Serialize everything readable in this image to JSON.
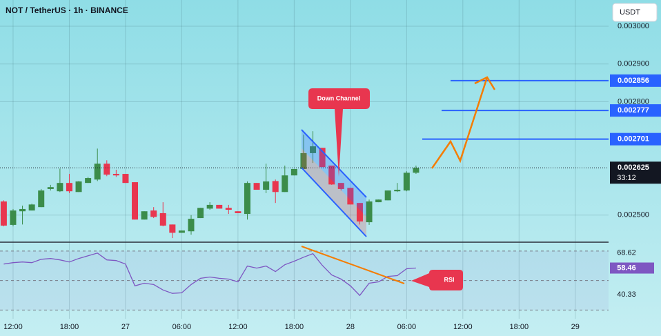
{
  "chart_data": [
    {
      "type": "candlestick",
      "title": "NOT / TetherUS · 1h · BINANCE",
      "currency": "USDT",
      "countdown": "33:12",
      "categories": [
        null,
        "12:00",
        null,
        null,
        null,
        null,
        null,
        "18:00",
        null,
        null,
        null,
        null,
        null,
        "27",
        null,
        null,
        null,
        null,
        null,
        "06:00",
        null,
        null,
        null,
        null,
        null,
        "12:00",
        null,
        null,
        null,
        null,
        null,
        "18:00",
        null,
        null,
        null,
        null,
        null,
        "28",
        null,
        null,
        null,
        null,
        null,
        "06:00",
        null,
        null,
        null,
        null,
        null,
        "12:00",
        null,
        null,
        null,
        null,
        null,
        "18:00",
        null,
        null,
        null,
        null,
        null,
        "29",
        null,
        null,
        null
      ],
      "open": [
        0.002536,
        0.002474,
        0.00251,
        0.002512,
        0.002521,
        0.002569,
        0.002563,
        0.002585,
        0.002561,
        0.002585,
        0.002594,
        0.002636,
        0.002609,
        0.002609,
        0.002587,
        0.002488,
        0.002512,
        0.002505,
        0.002475,
        0.002453,
        0.002457,
        0.002492,
        0.002517,
        0.002527,
        0.002519,
        0.00251,
        0.002503,
        0.002585,
        0.002567,
        0.00259,
        0.002561,
        0.002605,
        0.002622,
        0.002664,
        0.002678,
        0.002631,
        0.002585,
        0.002572,
        0.002532,
        0.002481,
        0.002534,
        0.002539,
        0.002563,
        0.002565,
        0.002612,
        null,
        null,
        null,
        null,
        null,
        null,
        null,
        null,
        null,
        null,
        null,
        null,
        null,
        null,
        null,
        null,
        null,
        null,
        null,
        null
      ],
      "high": [
        0.002539,
        0.002516,
        0.002525,
        0.00253,
        0.002569,
        0.00258,
        0.002623,
        0.002609,
        0.00259,
        0.002601,
        0.002676,
        0.002645,
        0.00262,
        0.002609,
        0.002587,
        0.00251,
        0.002521,
        0.002534,
        0.002475,
        0.002459,
        0.0025,
        0.002519,
        0.002534,
        0.002527,
        0.002527,
        0.00251,
        0.002589,
        0.002585,
        0.002636,
        0.002594,
        0.002631,
        0.002622,
        0.002713,
        0.002722,
        0.002678,
        0.002631,
        0.002585,
        0.002572,
        0.002532,
        0.002541,
        0.002541,
        0.002565,
        0.002585,
        0.002616,
        0.002631,
        null,
        null,
        null,
        null,
        null,
        null,
        null,
        null,
        null,
        null,
        null,
        null,
        null,
        null,
        null,
        null,
        null,
        null,
        null,
        null
      ],
      "low": [
        0.00247,
        0.00247,
        0.002475,
        0.002512,
        0.002521,
        0.002565,
        0.002561,
        0.002558,
        0.002561,
        0.002585,
        0.00259,
        0.002603,
        0.002601,
        0.002585,
        0.002488,
        0.002488,
        0.002492,
        0.00247,
        0.002439,
        0.002453,
        0.002448,
        0.002492,
        0.002514,
        0.002517,
        0.002503,
        0.002505,
        0.002488,
        0.002567,
        0.002558,
        0.002532,
        0.002561,
        0.002605,
        0.00262,
        0.002638,
        0.002627,
        0.00258,
        0.002565,
        0.002528,
        0.002475,
        0.002474,
        0.002534,
        0.002539,
        0.002561,
        0.002563,
        0.002609,
        null,
        null,
        null,
        null,
        null,
        null,
        null,
        null,
        null,
        null,
        null,
        null,
        null,
        null,
        null,
        null,
        null,
        null,
        null,
        null
      ],
      "close": [
        0.002472,
        0.002512,
        0.002516,
        0.002528,
        0.002565,
        0.002574,
        0.002585,
        0.002563,
        0.002589,
        0.002598,
        0.002636,
        0.002607,
        0.002605,
        0.002585,
        0.002488,
        0.00251,
        0.002495,
        0.002472,
        0.002453,
        0.002459,
        0.00249,
        0.002519,
        0.002527,
        0.002517,
        0.002514,
        0.002505,
        0.002585,
        0.002567,
        0.002589,
        0.002561,
        0.002605,
        0.002622,
        0.002664,
        0.002682,
        0.002627,
        0.002581,
        0.002569,
        0.002528,
        0.002483,
        0.002536,
        0.002541,
        0.002565,
        0.002567,
        0.002612,
        0.002625,
        null,
        null,
        null,
        null,
        null,
        null,
        null,
        null,
        null,
        null,
        null,
        null,
        null,
        null,
        null,
        null,
        null,
        null,
        null,
        null
      ],
      "up_color": "#3b8c4a",
      "down_color": "#e8364f",
      "levels": [
        0.002856,
        0.002777,
        0.002701
      ],
      "level_color": "#2962ff",
      "ylim": [
        0.00243,
        0.0030695
      ],
      "yticks": [
        {
          "value": 0.003,
          "label": "0.003000"
        },
        {
          "value": 0.0029,
          "label": "0.002900"
        },
        {
          "value": 0.0028,
          "label": "0.002800"
        },
        {
          "value": 0.0025,
          "label": "0.002500"
        }
      ],
      "grid": true,
      "annotations": [
        "Down Channel"
      ]
    },
    {
      "type": "line",
      "series": [
        {
          "color": "#7e57c2",
          "values": [
            61.2,
            62.1,
            62.6,
            62.1,
            64.4,
            64.9,
            64.0,
            62.6,
            64.9,
            66.8,
            68.6,
            64.0,
            63.5,
            61.2,
            46.4,
            48.2,
            47.3,
            43.6,
            41.3,
            41.7,
            47.3,
            51.5,
            52.4,
            51.5,
            51.0,
            49.1,
            59.8,
            58.4,
            59.8,
            56.1,
            60.7,
            63.1,
            65.8,
            68.2,
            60.3,
            53.8,
            51.0,
            46.4,
            39.9,
            48.2,
            49.1,
            52.8,
            53.3,
            58.0,
            58.46,
            null,
            null,
            null,
            null,
            null,
            null,
            null,
            null,
            null,
            null,
            null,
            null,
            null,
            null,
            null,
            null,
            null,
            null,
            null,
            null
          ]
        }
      ],
      "ylim": [
        24.1,
        76.0
      ],
      "yticks": [
        68.62,
        40.33
      ],
      "bands": [
        70,
        50,
        30
      ],
      "annotations": [
        "RSI"
      ]
    }
  ]
}
